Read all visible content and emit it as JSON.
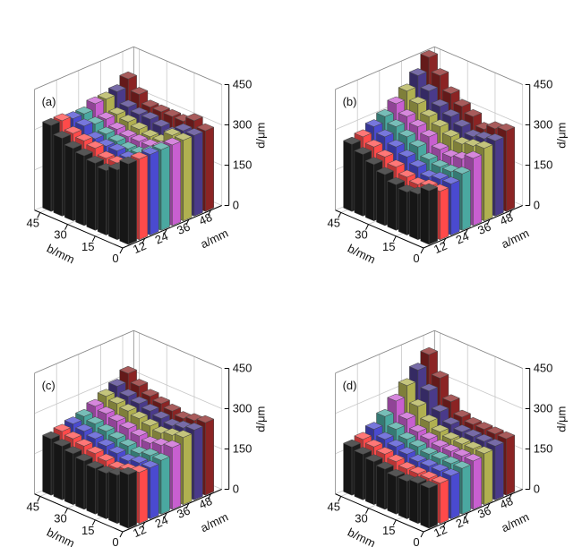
{
  "colors": {
    "rows": [
      "#1e1e1e",
      "#ff4a4a",
      "#4a4ad0",
      "#4aa8a0",
      "#c85fd0",
      "#b0b050",
      "#4a3a8a",
      "#8b2424"
    ],
    "edge": "#444444",
    "axis": "#000000",
    "grid": "#c8c8c8"
  },
  "chart_data": [
    {
      "type": "bar3d",
      "panel_label": "(a)",
      "x_label": "a/mm",
      "y_label": "b/mm",
      "z_label": "d/μm",
      "x_ticks": [
        "12",
        "24",
        "36",
        "48"
      ],
      "y_ticks": [
        "45",
        "30",
        "15",
        "0"
      ],
      "z_ticks": [
        "0",
        "150",
        "300",
        "450"
      ],
      "zlim": [
        0,
        450
      ],
      "grid": true,
      "a_values": [
        6,
        12,
        18,
        24,
        30,
        36,
        42,
        48
      ],
      "b_values": [
        0,
        6,
        12,
        18,
        24,
        30,
        36,
        42
      ],
      "values": [
        [
          300,
          300,
          300,
          300,
          300,
          300,
          300,
          300
        ],
        [
          260,
          260,
          260,
          270,
          270,
          300,
          300,
          320
        ],
        [
          240,
          250,
          250,
          250,
          260,
          260,
          270,
          300
        ],
        [
          250,
          250,
          260,
          250,
          260,
          260,
          280,
          300
        ],
        [
          260,
          270,
          260,
          260,
          260,
          270,
          290,
          300
        ],
        [
          270,
          280,
          270,
          270,
          270,
          280,
          290,
          300
        ],
        [
          290,
          290,
          300,
          290,
          290,
          290,
          300,
          330
        ],
        [
          320,
          320,
          310,
          310,
          330,
          330,
          340,
          370
        ]
      ]
    },
    {
      "type": "bar3d",
      "panel_label": "(b)",
      "x_label": "a/mm",
      "y_label": "b/mm",
      "z_label": "d/μm",
      "x_ticks": [
        "12",
        "24",
        "36",
        "48"
      ],
      "y_ticks": [
        "45",
        "30",
        "15",
        "0"
      ],
      "z_ticks": [
        "0",
        "150",
        "300",
        "450"
      ],
      "zlim": [
        0,
        450
      ],
      "grid": true,
      "a_values": [
        6,
        12,
        18,
        24,
        30,
        36,
        42,
        48
      ],
      "b_values": [
        0,
        6,
        12,
        18,
        24,
        30,
        36,
        42
      ],
      "values": [
        [
          200,
          180,
          190,
          210,
          250,
          270,
          280,
          300
        ],
        [
          170,
          180,
          190,
          200,
          230,
          260,
          270,
          290
        ],
        [
          160,
          170,
          180,
          200,
          220,
          250,
          260,
          270
        ],
        [
          170,
          180,
          200,
          210,
          230,
          260,
          280,
          300
        ],
        [
          190,
          200,
          220,
          240,
          260,
          280,
          300,
          320
        ],
        [
          210,
          220,
          240,
          260,
          280,
          300,
          320,
          350
        ],
        [
          230,
          240,
          260,
          280,
          300,
          330,
          360,
          400
        ],
        [
          250,
          260,
          280,
          300,
          330,
          360,
          400,
          450
        ]
      ]
    },
    {
      "type": "bar3d",
      "panel_label": "(c)",
      "x_label": "a/mm",
      "y_label": "b/mm",
      "z_label": "d/μm",
      "x_ticks": [
        "12",
        "24",
        "36",
        "48"
      ],
      "y_ticks": [
        "45",
        "30",
        "15",
        "0"
      ],
      "z_ticks": [
        "0",
        "150",
        "300",
        "450"
      ],
      "zlim": [
        0,
        450
      ],
      "grid": true,
      "a_values": [
        6,
        12,
        18,
        24,
        30,
        36,
        42,
        48
      ],
      "b_values": [
        0,
        6,
        12,
        18,
        24,
        30,
        36,
        42
      ],
      "values": [
        [
          200,
          190,
          190,
          200,
          230,
          250,
          260,
          270
        ],
        [
          180,
          180,
          190,
          200,
          220,
          240,
          250,
          260
        ],
        [
          170,
          170,
          180,
          190,
          210,
          230,
          240,
          250
        ],
        [
          170,
          180,
          190,
          200,
          220,
          240,
          250,
          260
        ],
        [
          180,
          190,
          200,
          210,
          230,
          250,
          260,
          270
        ],
        [
          190,
          200,
          210,
          220,
          240,
          260,
          270,
          280
        ],
        [
          200,
          210,
          220,
          230,
          250,
          270,
          280,
          300
        ],
        [
          210,
          220,
          230,
          240,
          260,
          280,
          300,
          330
        ]
      ]
    },
    {
      "type": "bar3d",
      "panel_label": "(d)",
      "x_label": "a/mm",
      "y_label": "b/mm",
      "z_label": "d/μm",
      "x_ticks": [
        "12",
        "24",
        "36",
        "48"
      ],
      "y_ticks": [
        "45",
        "30",
        "15",
        "0"
      ],
      "z_ticks": [
        "0",
        "150",
        "300",
        "450"
      ],
      "zlim": [
        0,
        450
      ],
      "grid": true,
      "a_values": [
        6,
        12,
        18,
        24,
        30,
        36,
        42,
        48
      ],
      "b_values": [
        0,
        6,
        12,
        18,
        24,
        30,
        36,
        42
      ],
      "values": [
        [
          150,
          150,
          160,
          170,
          180,
          190,
          200,
          210
        ],
        [
          150,
          150,
          160,
          170,
          180,
          190,
          200,
          210
        ],
        [
          140,
          150,
          160,
          170,
          180,
          190,
          200,
          210
        ],
        [
          140,
          150,
          160,
          170,
          180,
          190,
          200,
          210
        ],
        [
          150,
          160,
          170,
          180,
          190,
          200,
          210,
          220
        ],
        [
          160,
          170,
          180,
          190,
          200,
          220,
          240,
          260
        ],
        [
          170,
          180,
          190,
          210,
          230,
          260,
          300,
          330
        ],
        [
          180,
          190,
          210,
          240,
          280,
          320,
          360,
          400
        ]
      ]
    }
  ]
}
